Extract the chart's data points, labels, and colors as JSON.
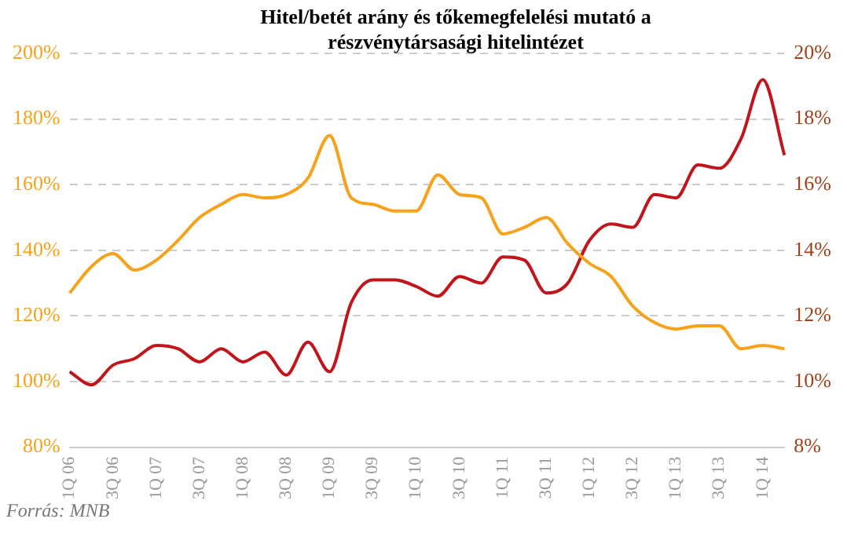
{
  "chart_data": {
    "type": "line",
    "title": "Hitel/betét arány és tőkemegfelelési mutató a részvénytársasági hitelintézet",
    "categories": [
      "1Q 06",
      null,
      "3Q 06",
      null,
      "1Q 07",
      null,
      "3Q 07",
      null,
      "1Q 08",
      null,
      "3Q 08",
      null,
      "1Q 09",
      null,
      "3Q 09",
      null,
      "1Q 10",
      null,
      "3Q 10",
      null,
      "1Q 11",
      null,
      "3Q 11",
      null,
      "1Q 12",
      null,
      "3Q 12",
      null,
      "1Q 13",
      null,
      "3Q 13",
      null,
      "1Q 14",
      null
    ],
    "series": [
      {
        "color": "#f7a21b",
        "values": [
          127,
          135,
          139,
          134,
          137,
          143,
          150,
          154,
          157,
          156,
          157,
          162,
          175,
          156,
          154,
          152,
          152,
          163,
          157,
          156,
          145,
          147,
          150,
          142,
          136,
          132,
          123,
          118,
          116,
          117,
          117,
          110,
          111,
          110
        ]
      },
      {
        "color": "#c0161b",
        "axis": "y2",
        "values": [
          10.3,
          9.9,
          10.5,
          10.7,
          11.1,
          11.0,
          10.6,
          11.0,
          10.6,
          10.9,
          10.2,
          11.2,
          10.3,
          12.4,
          13.1,
          13.1,
          12.9,
          12.6,
          13.2,
          13.0,
          13.8,
          13.7,
          12.7,
          13.0,
          14.3,
          14.8,
          14.7,
          15.7,
          15.6,
          16.6,
          16.5,
          17.4,
          19.2,
          16.9
        ]
      }
    ],
    "ylim": [
      80,
      200
    ],
    "yticks": [
      {
        "value": 80,
        "label": "80%"
      },
      {
        "value": 100,
        "label": "100%"
      },
      {
        "value": 120,
        "label": "120%"
      },
      {
        "value": 140,
        "label": "140%"
      },
      {
        "value": 160,
        "label": "160%"
      },
      {
        "value": 180,
        "label": "180%"
      },
      {
        "value": 200,
        "label": "200%"
      }
    ],
    "y2lim": [
      8,
      20
    ],
    "y2ticks": [
      {
        "value": 8,
        "label": "8%"
      },
      {
        "value": 10,
        "label": "10%"
      },
      {
        "value": 12,
        "label": "12%"
      },
      {
        "value": 14,
        "label": "14%"
      },
      {
        "value": 16,
        "label": "16%"
      },
      {
        "value": 18,
        "label": "18%"
      },
      {
        "value": 20,
        "label": "20%"
      }
    ],
    "grid": "y",
    "marker": "none",
    "line_style": "solid",
    "annotations": [
      "Forrás: MNB"
    ]
  }
}
